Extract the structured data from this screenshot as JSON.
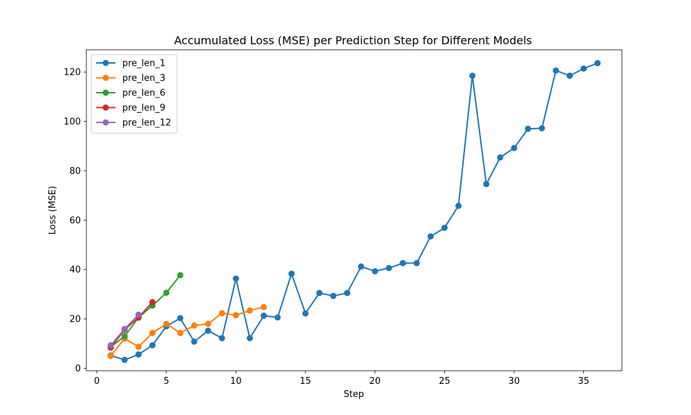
{
  "chart_data": {
    "type": "line",
    "title": "Accumulated Loss (MSE) per Prediction Step for Different Models",
    "xlabel": "Step",
    "ylabel": "Loss (MSE)",
    "xlim": [
      -0.75,
      37.75
    ],
    "ylim": [
      -1.0,
      129.0
    ],
    "xticks": [
      0,
      5,
      10,
      15,
      20,
      25,
      30,
      35
    ],
    "yticks": [
      0,
      20,
      40,
      60,
      80,
      100,
      120
    ],
    "grid": false,
    "legend_position": "top-left",
    "series": [
      {
        "name": "pre_len_1",
        "color": "#1f77b4",
        "x": [
          1,
          2,
          3,
          4,
          5,
          6,
          7,
          8,
          9,
          10,
          11,
          12,
          13,
          14,
          15,
          16,
          17,
          18,
          19,
          20,
          21,
          22,
          23,
          24,
          25,
          26,
          27,
          28,
          29,
          30,
          31,
          32,
          33,
          34,
          35,
          36
        ],
        "y": [
          5.2,
          3.4,
          5.6,
          9.3,
          17.0,
          20.3,
          10.8,
          15.2,
          12.2,
          36.3,
          12.2,
          21.3,
          20.6,
          38.3,
          22.2,
          30.5,
          29.3,
          30.5,
          41.2,
          39.3,
          40.6,
          42.6,
          42.6,
          53.4,
          56.9,
          65.8,
          118.5,
          74.6,
          85.4,
          89.2,
          97.0,
          97.2,
          120.6,
          118.5,
          121.4,
          123.6
        ]
      },
      {
        "name": "pre_len_3",
        "color": "#ff7f0e",
        "x": [
          1,
          2,
          3,
          4,
          5,
          6,
          7,
          8,
          9,
          10,
          11,
          12
        ],
        "y": [
          5.0,
          12.0,
          8.7,
          14.3,
          18.0,
          14.3,
          17.3,
          18.0,
          22.3,
          21.5,
          23.4,
          24.8
        ]
      },
      {
        "name": "pre_len_6",
        "color": "#2ca02c",
        "x": [
          1,
          2,
          3,
          4,
          5,
          6
        ],
        "y": [
          8.6,
          13.0,
          20.5,
          25.4,
          30.6,
          37.7
        ]
      },
      {
        "name": "pre_len_9",
        "color": "#d62728",
        "x": [
          1,
          2,
          3,
          4
        ],
        "y": [
          8.4,
          15.6,
          20.6,
          26.8
        ]
      },
      {
        "name": "pre_len_12",
        "color": "#9467bd",
        "x": [
          1,
          2,
          3
        ],
        "y": [
          9.3,
          15.9,
          21.7
        ]
      }
    ]
  }
}
